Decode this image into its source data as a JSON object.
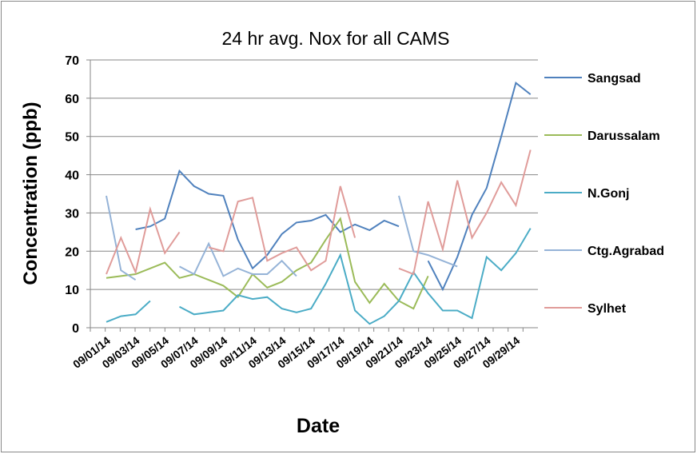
{
  "chart_data": {
    "type": "line",
    "title": "24 hr avg. Nox for all CAMS",
    "x_label": "Date",
    "y_label": "Concentration (ppb)",
    "categories": [
      "09/01/14",
      null,
      "09/03/14",
      null,
      "09/05/14",
      null,
      "09/07/14",
      null,
      "09/09/14",
      null,
      "09/11/14",
      null,
      "09/13/14",
      null,
      "09/15/14",
      null,
      "09/17/14",
      null,
      "09/19/14",
      null,
      "09/21/14",
      null,
      "09/23/14",
      null,
      "09/25/14",
      null,
      "09/27/14",
      null,
      "09/29/14",
      null
    ],
    "ylim": [
      0,
      70
    ],
    "yticks": [
      0,
      10,
      20,
      30,
      40,
      50,
      60,
      70
    ],
    "grid": true,
    "legend": "right",
    "series": [
      {
        "name": "Sangsad",
        "color": "#4f81bd",
        "values": [
          null,
          null,
          25.7,
          26.5,
          28.5,
          41,
          37,
          35,
          34.5,
          23,
          15.5,
          19,
          24.5,
          27.5,
          28,
          29.5,
          25,
          27,
          25.5,
          28,
          26.5,
          null,
          17.5,
          10,
          18.5,
          29.5,
          36.5,
          50,
          64,
          61
        ]
      },
      {
        "name": "Darussalam",
        "color": "#9bbb59",
        "values": [
          13,
          13.5,
          14,
          15.5,
          17,
          13,
          14,
          12.5,
          11,
          8,
          14,
          10.5,
          12,
          15,
          17,
          23,
          28.5,
          12,
          6.5,
          11.5,
          7,
          5,
          13.5,
          null,
          null,
          null,
          null,
          null,
          null,
          null
        ]
      },
      {
        "name": "N.Gonj",
        "color": "#4bacc6",
        "values": [
          1.5,
          3,
          3.5,
          7,
          null,
          5.5,
          3.5,
          4,
          4.5,
          8.5,
          7.5,
          8,
          5,
          4,
          5,
          11.5,
          19,
          4.5,
          1,
          3,
          7,
          14.5,
          9,
          4.5,
          4.5,
          2.5,
          18.5,
          15,
          19.5,
          26
        ]
      },
      {
        "name": "Ctg.Agrabad",
        "color": "#95b3d7",
        "values": [
          34.5,
          15,
          12.5,
          null,
          null,
          16,
          14,
          22,
          13.5,
          15.5,
          14,
          14,
          17.5,
          13.5,
          null,
          null,
          null,
          null,
          null,
          null,
          34.5,
          20,
          19,
          17.5,
          16,
          null,
          null,
          null,
          null,
          null
        ]
      },
      {
        "name": "Sylhet",
        "color": "#e09c9a",
        "values": [
          14,
          23.5,
          14.5,
          31,
          19.5,
          25,
          null,
          21,
          20,
          33,
          34,
          17.5,
          19.5,
          21,
          15,
          17.5,
          37,
          23.5,
          null,
          null,
          15.5,
          14,
          33,
          20.5,
          38.5,
          23.5,
          30,
          38,
          32,
          46.5
        ]
      }
    ]
  }
}
